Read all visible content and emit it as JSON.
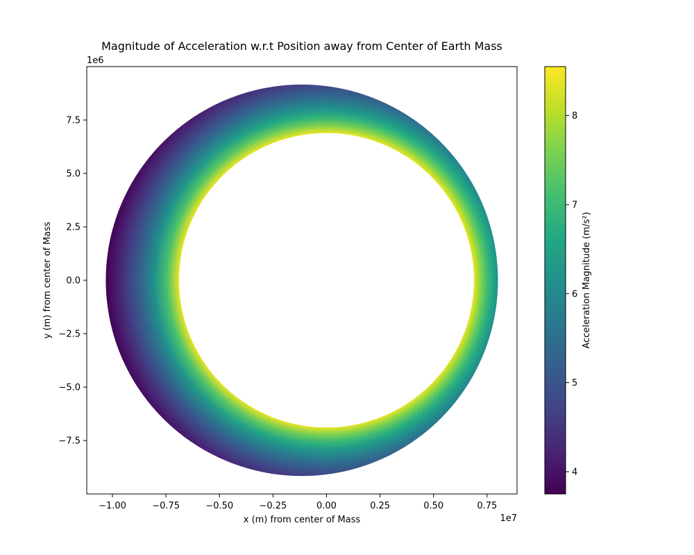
{
  "chart_data": {
    "type": "heatmap",
    "title": "Magnitude of Acceleration w.r.t Position away from Center of Earth Mass",
    "xlabel": "x (m) from center of Mass",
    "ylabel": "y (m) from center of Mass",
    "x_offset_label": "1e7",
    "y_offset_label": "1e6",
    "xlim": [
      -11200000.0,
      8900000.0
    ],
    "ylim": [
      -10000000.0,
      10000000.0
    ],
    "x_ticks": [
      -1.0,
      -0.75,
      -0.5,
      -0.25,
      0.0,
      0.25,
      0.5,
      0.75
    ],
    "x_tick_labels": [
      "−1.00",
      "−0.75",
      "−0.50",
      "−0.25",
      "0.00",
      "0.25",
      "0.50",
      "0.75"
    ],
    "y_ticks": [
      -7.5,
      -5.0,
      -2.5,
      0.0,
      2.5,
      5.0,
      7.5
    ],
    "y_tick_labels": [
      "−7.5",
      "−5.0",
      "−2.5",
      "0.0",
      "2.5",
      "5.0",
      "7.5"
    ],
    "annulus": {
      "inner_circle_center": [
        0.0,
        0.0
      ],
      "inner_radius": 6900000.0,
      "outer_circle_center": [
        -1150000.0,
        0.0
      ],
      "outer_radius": 9150000.0
    },
    "colorbar": {
      "label": "Acceleration Magnitude (m/s²)",
      "range": [
        3.75,
        8.55
      ],
      "ticks": [
        4,
        5,
        6,
        7,
        8
      ],
      "tick_labels": [
        "4",
        "5",
        "6",
        "7",
        "8"
      ],
      "colormap": "viridis"
    },
    "grid": false
  }
}
